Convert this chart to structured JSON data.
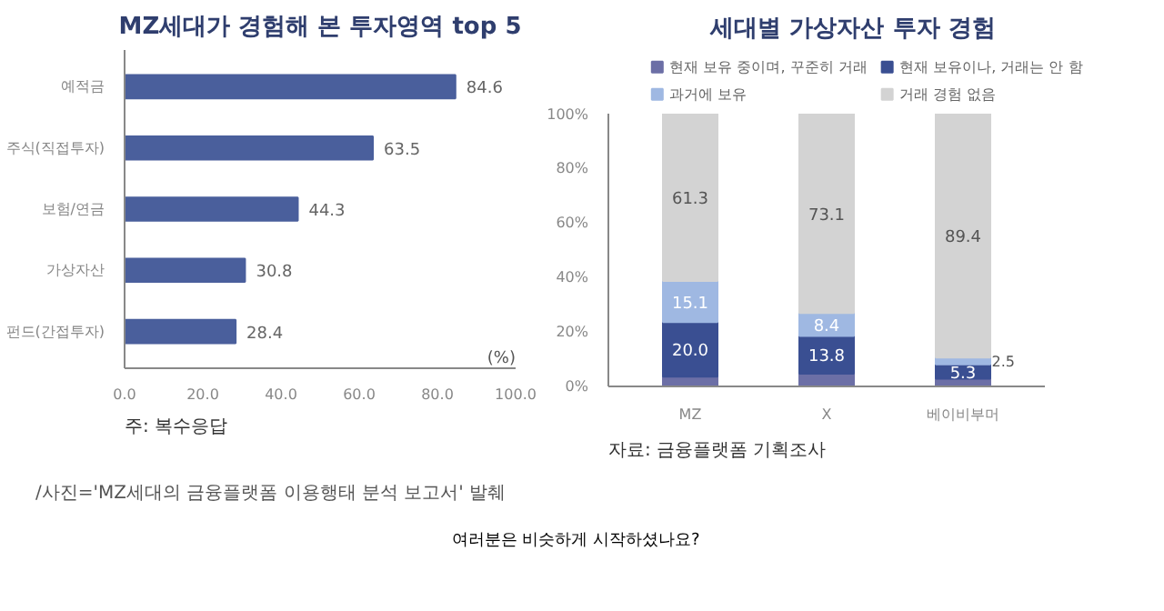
{
  "chart_data": [
    {
      "type": "bar",
      "orientation": "horizontal",
      "title": "MZ세대가 경험해 본 투자영역 top 5",
      "xlabel": "(%)",
      "categories": [
        "예적금",
        "주식(직접투자)",
        "보험/연금",
        "가상자산",
        "펀드(간접투자)"
      ],
      "values": [
        84.6,
        63.5,
        44.3,
        30.8,
        28.4
      ],
      "color": "#4a5f9c",
      "data_labels": true,
      "xlim": [
        0,
        100
      ],
      "xticks": [
        {
          "value": 0,
          "label": "0.0"
        },
        {
          "value": 20,
          "label": "20.0"
        },
        {
          "value": 40,
          "label": "40.0"
        },
        {
          "value": 60,
          "label": "60.0"
        },
        {
          "value": 80,
          "label": "80.0"
        },
        {
          "value": 100,
          "label": "100.0"
        }
      ],
      "grid": false,
      "annotations": [
        "주: 복수응답",
        "/사진='MZ세대의 금융플랫폼 이용행태 분석 보고서' 발췌",
        "여러분은 비슷하게 시작하셨나요?"
      ]
    },
    {
      "type": "bar",
      "stacked": true,
      "title": "세대별 가상자산 투자 경험",
      "categories": [
        "MZ",
        "X",
        "베이비부머"
      ],
      "series": [
        {
          "name": "현재 보유 중이며, 꾸준히 거래",
          "color": "#6c6fa6",
          "values": [
            3.6,
            4.7,
            2.8
          ],
          "value_labels": [
            null,
            null,
            null
          ]
        },
        {
          "name": "현재 보유이나, 거래는 안 함",
          "color": "#3a4f92",
          "values": [
            20.0,
            13.8,
            5.3
          ],
          "value_labels": [
            "20.0",
            "13.8",
            "5.3"
          ]
        },
        {
          "name": "과거에 보유",
          "color": "#9fb8e2",
          "values": [
            15.1,
            8.4,
            2.5
          ],
          "value_labels": [
            "15.1",
            "8.4",
            "2.5"
          ]
        },
        {
          "name": "거래 경험 없음",
          "color": "#d3d3d3",
          "values": [
            61.3,
            73.1,
            89.4
          ],
          "value_labels": [
            "61.3",
            "73.1",
            "89.4"
          ]
        }
      ],
      "ylim": [
        0,
        100
      ],
      "yticks": [
        {
          "value": 0,
          "label": "0%"
        },
        {
          "value": 20,
          "label": "20%"
        },
        {
          "value": 40,
          "label": "40%"
        },
        {
          "value": 60,
          "label": "60%"
        },
        {
          "value": 80,
          "label": "80%"
        },
        {
          "value": 100,
          "label": "100%"
        }
      ],
      "grid": false,
      "legend": "top",
      "annotations": [
        "자료: 금융플랫폼 기획조사"
      ]
    }
  ]
}
